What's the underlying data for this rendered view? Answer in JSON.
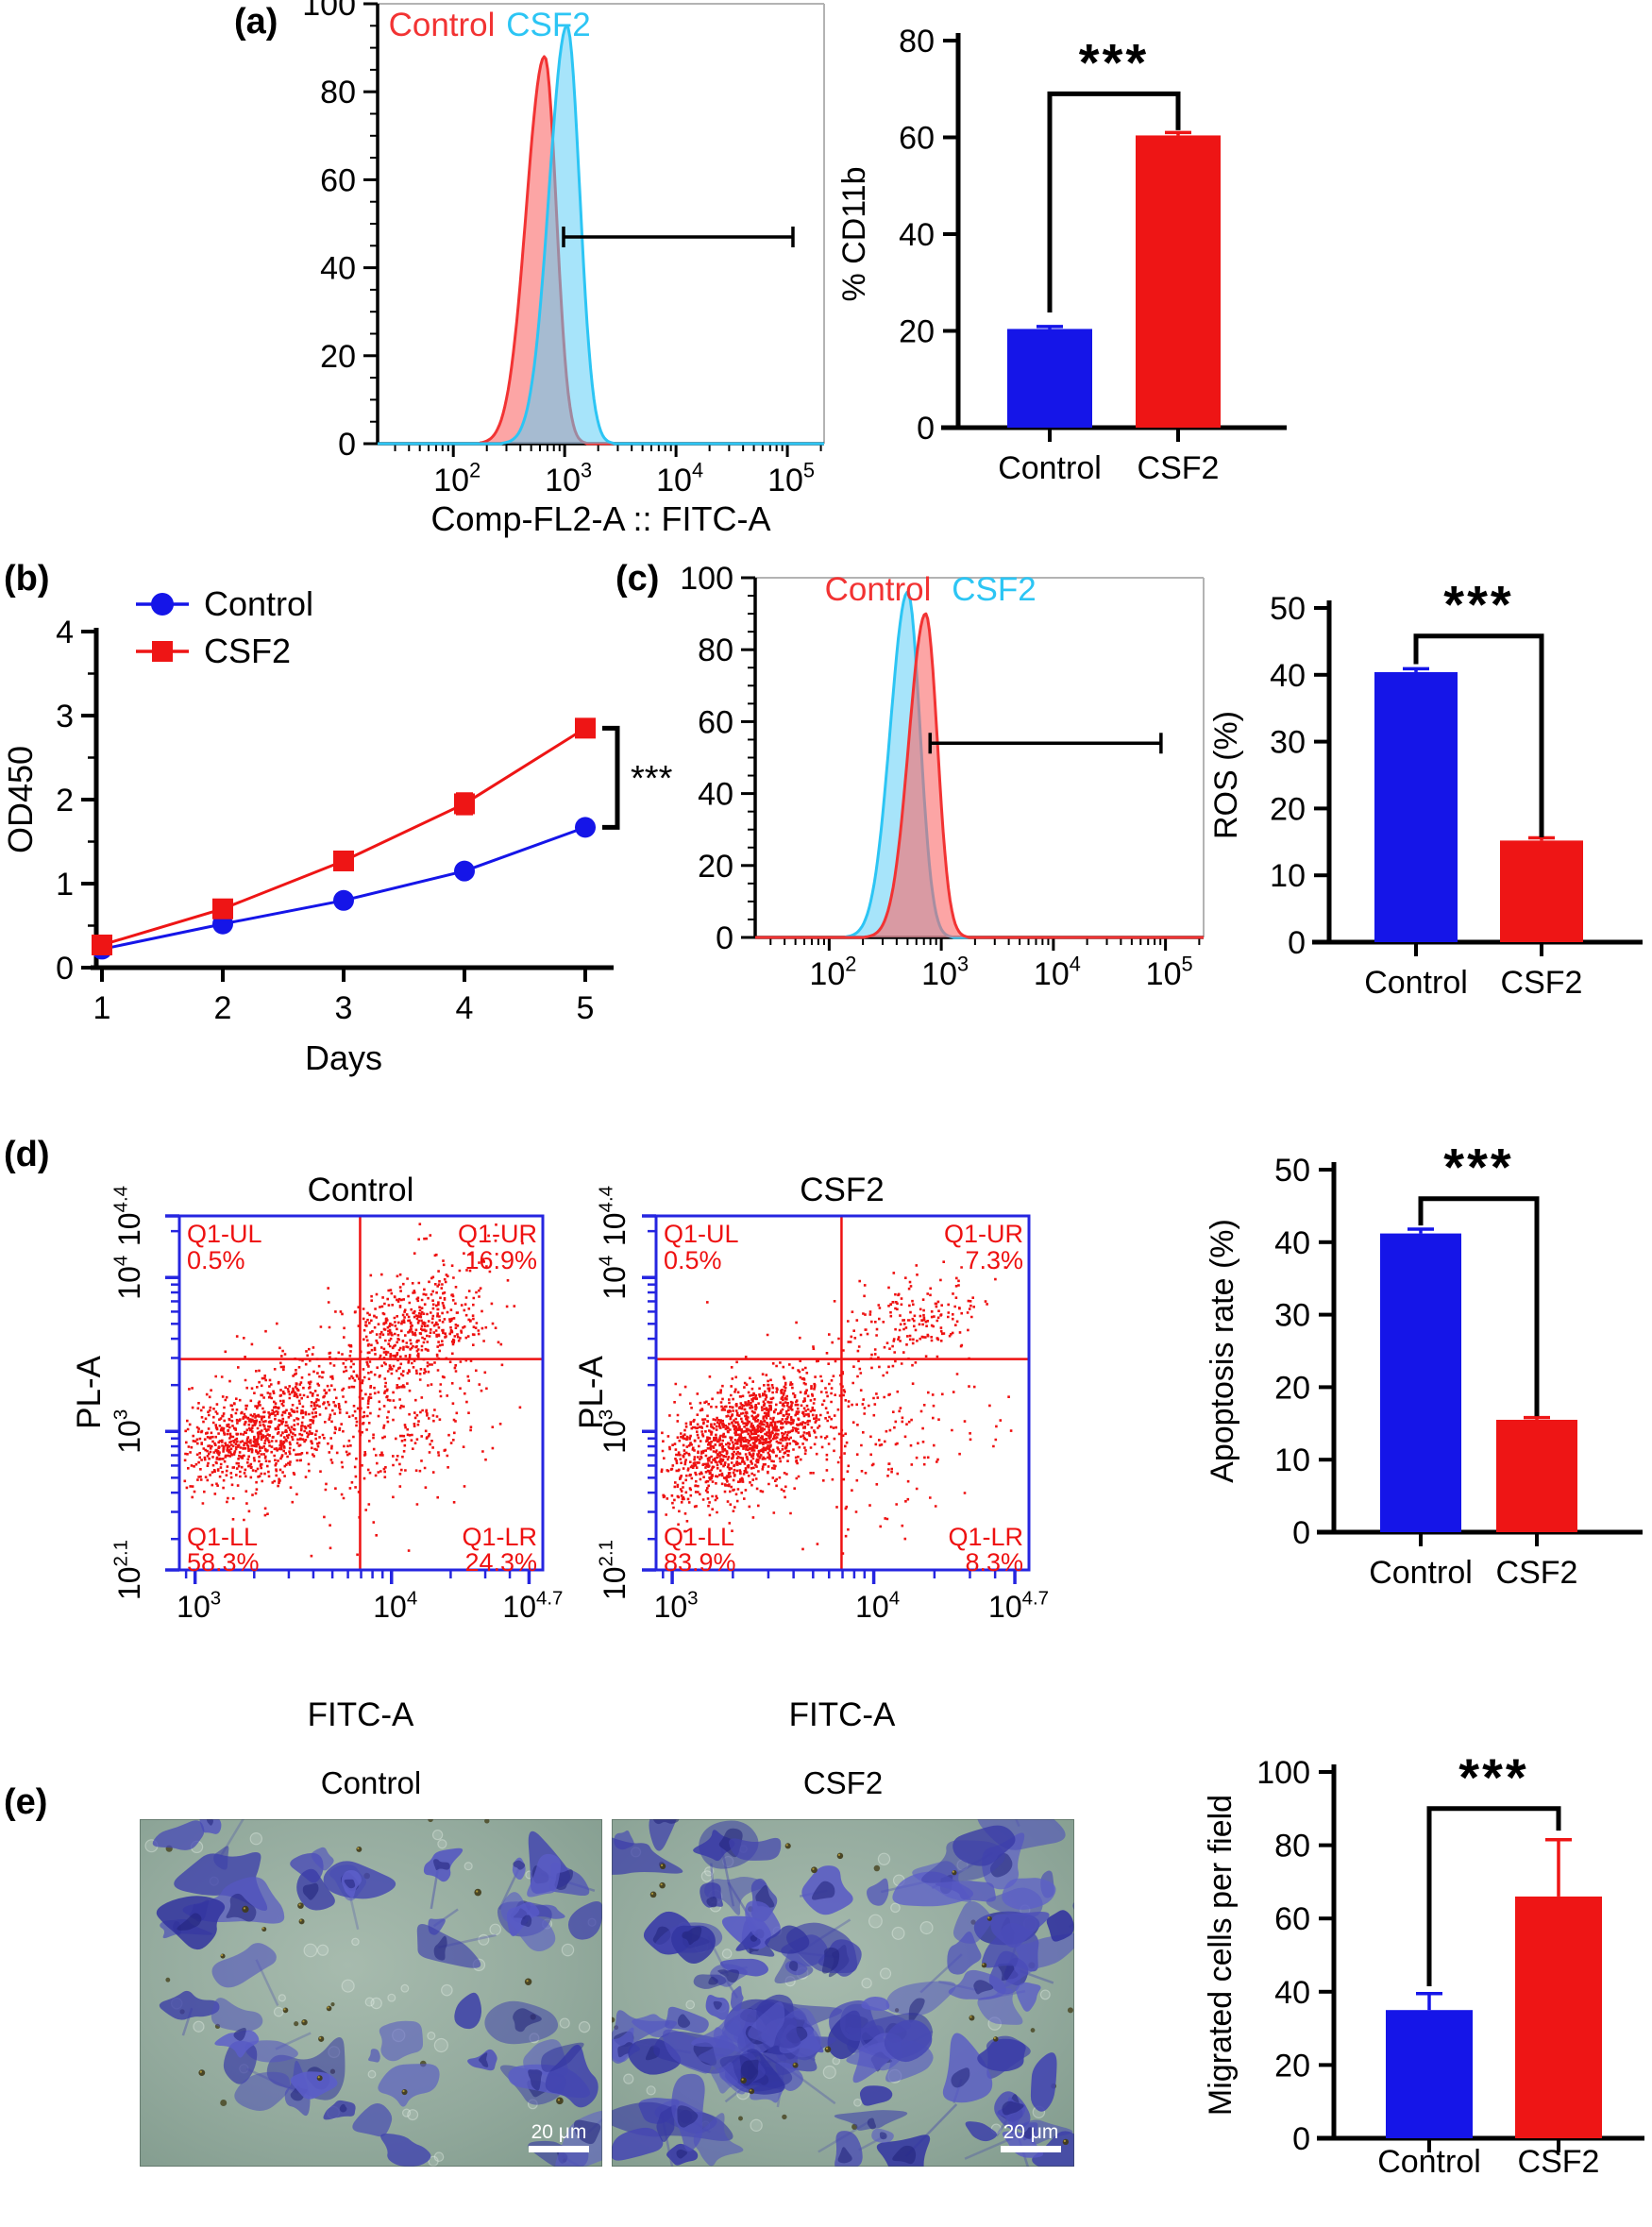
{
  "figure": {
    "panel_labels": {
      "a": "(a)",
      "b": "(b)",
      "c": "(c)",
      "d": "(d)",
      "e": "(e)"
    }
  },
  "colors": {
    "bar_blue": "#1515e8",
    "bar_red": "#ee1515",
    "flow_red": "#f23333",
    "flow_cyan": "#2cc5f4",
    "scatter_frame_blue": "#2525e0",
    "scatter_point_red": "#ee1111"
  },
  "chart_data": [
    {
      "id": "a_hist",
      "type": "flow_histogram",
      "legend": [
        {
          "label": "Control",
          "color": "#f23333"
        },
        {
          "label": "CSF2",
          "color": "#2cc5f4"
        }
      ],
      "xlabel": "Comp-FL2-A :: FITC-A",
      "x_scale": "log",
      "x_range": [
        1.32,
        5.33
      ],
      "x_ticks": [
        {
          "exp": 2,
          "sup": "2"
        },
        {
          "exp": 3,
          "sup": "3"
        },
        {
          "exp": 4,
          "sup": "4"
        },
        {
          "exp": 5,
          "sup": "5"
        }
      ],
      "ylim": [
        0,
        100
      ],
      "y_ticks": [
        0,
        20,
        40,
        60,
        80,
        100
      ],
      "series": [
        {
          "name": "Control",
          "peak": 88,
          "mu": 2.82,
          "sigma_l": 0.165,
          "sigma_r": 0.105,
          "stroke": "#f23333",
          "fill": "rgba(250,105,105,0.60)"
        },
        {
          "name": "CSF2",
          "peak": 95,
          "mu": 3.02,
          "sigma_l": 0.16,
          "sigma_r": 0.115,
          "stroke": "#2cc5f4",
          "fill": "rgba(95,205,245,0.55)"
        }
      ],
      "gate": {
        "y": 47,
        "x_from": 2.99,
        "x_to": 5.05
      }
    },
    {
      "id": "a_bar",
      "type": "bar",
      "categories": [
        "Control",
        "CSF2"
      ],
      "values": [
        20.4,
        60.4
      ],
      "errors": [
        0.5,
        0.6
      ],
      "colors": [
        "#1515e8",
        "#ee1515"
      ],
      "ylabel": "% CD11b",
      "ylim": [
        0,
        80
      ],
      "y_ticks": [
        0,
        20,
        40,
        60,
        80
      ],
      "sig": "***"
    },
    {
      "id": "b_line",
      "type": "line",
      "xlabel": "Days",
      "ylabel": "OD450",
      "x": [
        1,
        2,
        3,
        4,
        5
      ],
      "ylim": [
        0,
        4
      ],
      "y_ticks": [
        0,
        1,
        2,
        3,
        4
      ],
      "y_minor_step": 0.5,
      "series": [
        {
          "name": "Control",
          "color": "#1515e8",
          "marker": "circle",
          "values": [
            0.22,
            0.52,
            0.8,
            1.15,
            1.67
          ],
          "errors": [
            0.02,
            0.03,
            0.03,
            0.05,
            0.05
          ]
        },
        {
          "name": "CSF2",
          "color": "#ee1515",
          "marker": "square",
          "values": [
            0.27,
            0.7,
            1.27,
            1.95,
            2.85
          ],
          "errors": [
            0.03,
            0.04,
            0.09,
            0.12,
            0.07
          ]
        }
      ],
      "sig": "***"
    },
    {
      "id": "c_hist",
      "type": "flow_histogram",
      "legend": [
        {
          "label": "Control",
          "color": "#f23333"
        },
        {
          "label": "CSF2",
          "color": "#2cc5f4"
        }
      ],
      "xlabel": "",
      "x_scale": "log",
      "x_range": [
        1.34,
        5.34
      ],
      "x_ticks": [
        {
          "exp": 2,
          "sup": "2"
        },
        {
          "exp": 3,
          "sup": "3"
        },
        {
          "exp": 4,
          "sup": "4"
        },
        {
          "exp": 5,
          "sup": "5"
        }
      ],
      "ylim": [
        0,
        100
      ],
      "y_ticks": [
        0,
        20,
        40,
        60,
        80,
        100
      ],
      "series": [
        {
          "name": "CSF2",
          "peak": 96,
          "mu": 2.7,
          "sigma_l": 0.155,
          "sigma_r": 0.11,
          "stroke": "#2cc5f4",
          "fill": "rgba(95,205,245,0.55)"
        },
        {
          "name": "Control",
          "peak": 90,
          "mu": 2.86,
          "sigma_l": 0.15,
          "sigma_r": 0.105,
          "stroke": "#f23333",
          "fill": "rgba(250,105,105,0.60)"
        }
      ],
      "gate": {
        "y": 54,
        "x_from": 2.9,
        "x_to": 4.96
      }
    },
    {
      "id": "c_bar",
      "type": "bar",
      "categories": [
        "Control",
        "CSF2"
      ],
      "values": [
        40.4,
        15.2
      ],
      "errors": [
        0.5,
        0.4
      ],
      "colors": [
        "#1515e8",
        "#ee1515"
      ],
      "ylabel": "ROS (%)",
      "ylim": [
        0,
        50
      ],
      "y_ticks": [
        0,
        10,
        20,
        30,
        40,
        50
      ],
      "sig": "***"
    },
    {
      "id": "d_scatter_control",
      "type": "scatter",
      "title": "Control",
      "xlabel": "FITC-A",
      "ylabel": "PL-A",
      "x_scale": "log",
      "y_scale": "log",
      "x_range": [
        2.92,
        4.77
      ],
      "y_range": [
        2.1,
        4.4
      ],
      "x_ticks": [
        {
          "exp": 3,
          "sup": "3"
        },
        {
          "exp": 4,
          "sup": "4"
        },
        {
          "exp": 4.7,
          "sup": "4.7"
        }
      ],
      "y_ticks": [
        {
          "exp": 2.1,
          "sup": "2.1"
        },
        {
          "exp": 3,
          "sup": "3"
        },
        {
          "exp": 4,
          "sup": "4"
        },
        {
          "exp": 4.4,
          "sup": "4.4"
        }
      ],
      "frame_color": "#2525e0",
      "point_color": "#ee1111",
      "quad_color": "#ee1111",
      "gate_x": 3.84,
      "gate_y": 3.47,
      "quadrants": [
        {
          "pos": "UL",
          "label": "Q1-UL",
          "pct": "0.5%"
        },
        {
          "pos": "UR",
          "label": "Q1-UR",
          "pct": "16.9%"
        },
        {
          "pos": "LL",
          "label": "Q1-LL",
          "pct": "58.3%"
        },
        {
          "pos": "LR",
          "label": "Q1-LR",
          "pct": "24.3%"
        }
      ],
      "seed": 7,
      "clusters": [
        {
          "n": 950,
          "cx": 3.33,
          "cy": 3.02,
          "sx": 0.21,
          "sy": 0.2,
          "rho": 0.45
        },
        {
          "n": 300,
          "cx": 4.02,
          "cy": 3.08,
          "sx": 0.22,
          "sy": 0.3,
          "rho": 0.2
        },
        {
          "n": 430,
          "cx": 4.1,
          "cy": 3.66,
          "sx": 0.2,
          "sy": 0.16,
          "rho": 0.35
        },
        {
          "n": 70,
          "cx": 4.22,
          "cy": 3.95,
          "sx": 0.18,
          "sy": 0.2,
          "rho": 0.3
        },
        {
          "n": 7,
          "cx": 3.35,
          "cy": 3.62,
          "sx": 0.3,
          "sy": 0.12,
          "rho": 0
        }
      ]
    },
    {
      "id": "d_scatter_csf2",
      "type": "scatter",
      "title": "CSF2",
      "xlabel": "FITC-A",
      "ylabel": "PL-A",
      "x_scale": "log",
      "y_scale": "log",
      "x_range": [
        2.92,
        4.77
      ],
      "y_range": [
        2.1,
        4.4
      ],
      "x_ticks": [
        {
          "exp": 3,
          "sup": "3"
        },
        {
          "exp": 4,
          "sup": "4"
        },
        {
          "exp": 4.7,
          "sup": "4.7"
        }
      ],
      "y_ticks": [
        {
          "exp": 2.1,
          "sup": "2.1"
        },
        {
          "exp": 3,
          "sup": "3"
        },
        {
          "exp": 4,
          "sup": "4"
        },
        {
          "exp": 4.4,
          "sup": "4.4"
        }
      ],
      "frame_color": "#2525e0",
      "point_color": "#ee1111",
      "quad_color": "#ee1111",
      "gate_x": 3.84,
      "gate_y": 3.47,
      "quadrants": [
        {
          "pos": "UL",
          "label": "Q1-UL",
          "pct": "0.5%"
        },
        {
          "pos": "UR",
          "label": "Q1-UR",
          "pct": "7.3%"
        },
        {
          "pos": "LL",
          "label": "Q1-LL",
          "pct": "83.9%"
        },
        {
          "pos": "LR",
          "label": "Q1-LR",
          "pct": "8.3%"
        }
      ],
      "seed": 101,
      "clusters": [
        {
          "n": 1350,
          "cx": 3.36,
          "cy": 2.97,
          "sx": 0.2,
          "sy": 0.2,
          "rho": 0.45
        },
        {
          "n": 170,
          "cx": 4.03,
          "cy": 2.93,
          "sx": 0.24,
          "sy": 0.3,
          "rho": 0.15
        },
        {
          "n": 210,
          "cx": 4.15,
          "cy": 3.7,
          "sx": 0.2,
          "sy": 0.17,
          "rho": 0.4
        },
        {
          "n": 5,
          "cx": 3.3,
          "cy": 3.62,
          "sx": 0.25,
          "sy": 0.1,
          "rho": 0
        }
      ]
    },
    {
      "id": "d_bar",
      "type": "bar",
      "categories": [
        "Control",
        "CSF2"
      ],
      "values": [
        41.2,
        15.5
      ],
      "errors": [
        0.6,
        0.3
      ],
      "colors": [
        "#1515e8",
        "#ee1515"
      ],
      "ylabel": "Apoptosis rate (%)",
      "ylim": [
        0,
        50
      ],
      "y_ticks": [
        0,
        10,
        20,
        30,
        40,
        50
      ],
      "sig": "***"
    },
    {
      "id": "e_img_control",
      "type": "micrograph",
      "title": "Control",
      "scale_bar_label": "20 μm",
      "cells": 52,
      "seed": 11
    },
    {
      "id": "e_img_csf2",
      "type": "micrograph",
      "title": "CSF2",
      "scale_bar_label": "20 μm",
      "cells": 122,
      "seed": 29
    },
    {
      "id": "e_bar",
      "type": "bar",
      "categories": [
        "Control",
        "CSF2"
      ],
      "values": [
        35,
        66
      ],
      "errors": [
        4.5,
        15.5
      ],
      "colors": [
        "#1515e8",
        "#ee1515"
      ],
      "ylabel": "Migrated cells per field",
      "ylim": [
        0,
        100
      ],
      "y_ticks": [
        0,
        20,
        40,
        60,
        80,
        100
      ],
      "sig": "***"
    }
  ]
}
